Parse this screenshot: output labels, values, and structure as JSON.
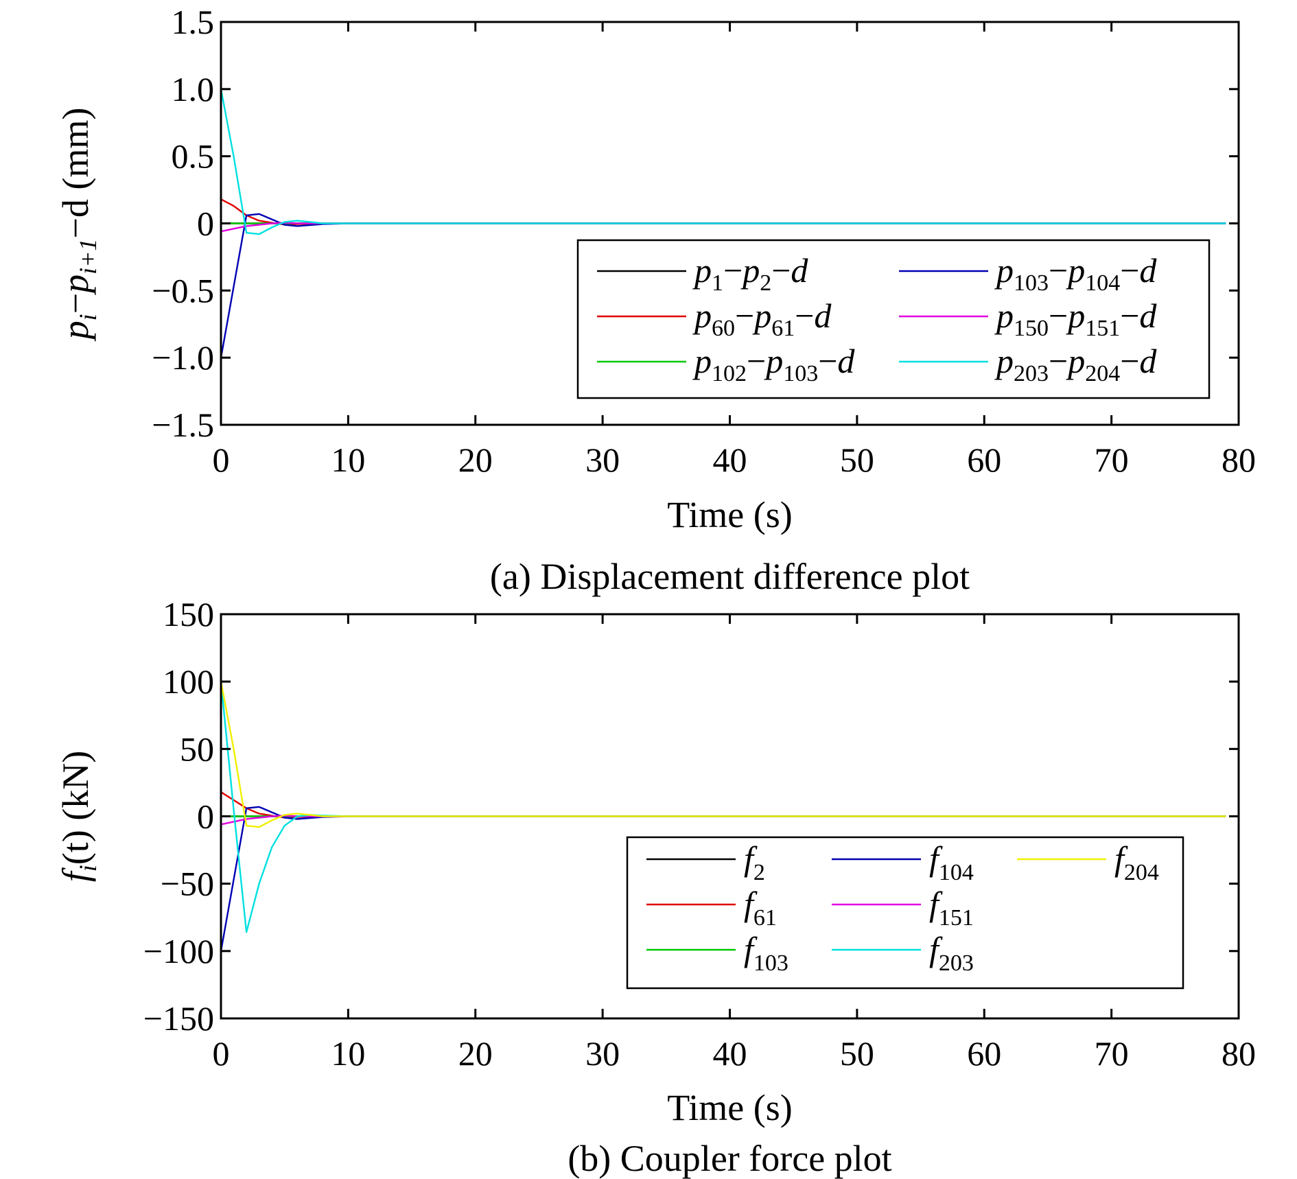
{
  "chart_data": [
    {
      "type": "line",
      "caption": "(a) Displacement difference plot",
      "xlabel": "Time (s)",
      "ylabel": "p_i−p_{i+1}−d (mm)",
      "ylabel_parts": {
        "p1": "p",
        "s1": "i",
        "dash1": "−",
        "p2": "p",
        "s2": "i+1",
        "rest": "−d (mm)"
      },
      "xlim": [
        0,
        80
      ],
      "ylim": [
        -1.5,
        1.5
      ],
      "xticks": [
        "0",
        "10",
        "20",
        "30",
        "40",
        "50",
        "60",
        "70",
        "80"
      ],
      "xtick_values": [
        0,
        10,
        20,
        30,
        40,
        50,
        60,
        70,
        80
      ],
      "yticks": [
        "1.5",
        "1.0",
        "0.5",
        "0",
        "−0.5",
        "−1.0",
        "−1.5"
      ],
      "ytick_values": [
        1.5,
        1.0,
        0.5,
        0,
        -0.5,
        -1.0,
        -1.5
      ],
      "legend_placement": "lower-right",
      "series": [
        {
          "name": "p1−p2−d",
          "label_parts": [
            [
              "p",
              "1"
            ],
            [
              "p",
              "2"
            ]
          ],
          "color": "#000000",
          "x": [
            0,
            2,
            4,
            6,
            8,
            10,
            79
          ],
          "y": [
            0,
            0,
            0,
            0,
            0,
            0,
            0
          ]
        },
        {
          "name": "p60−p61−d",
          "label_parts": [
            [
              "p",
              "60"
            ],
            [
              "p",
              "61"
            ]
          ],
          "color": "#e00000",
          "x": [
            0,
            1,
            2,
            3,
            4,
            5,
            6,
            8,
            10,
            79
          ],
          "y": [
            0.18,
            0.13,
            0.06,
            0.02,
            0.005,
            -0.01,
            -0.005,
            0,
            0,
            0
          ]
        },
        {
          "name": "p102−p103−d",
          "label_parts": [
            [
              "p",
              "102"
            ],
            [
              "p",
              "103"
            ]
          ],
          "color": "#00c800",
          "x": [
            0,
            2,
            4,
            6,
            10,
            79
          ],
          "y": [
            0,
            0,
            0,
            0,
            0,
            0
          ]
        },
        {
          "name": "p103−p104−d",
          "label_parts": [
            [
              "p",
              "103"
            ],
            [
              "p",
              "104"
            ]
          ],
          "color": "#0000b4",
          "x": [
            0,
            2,
            3,
            4,
            5,
            6,
            8,
            10,
            79
          ],
          "y": [
            -1.0,
            0.06,
            0.07,
            0.03,
            -0.01,
            -0.02,
            -0.005,
            0,
            0
          ]
        },
        {
          "name": "p150−p151−d",
          "label_parts": [
            [
              "p",
              "150"
            ],
            [
              "p",
              "151"
            ]
          ],
          "color": "#e000e0",
          "x": [
            0,
            1,
            2,
            3,
            4,
            5,
            6,
            8,
            10,
            79
          ],
          "y": [
            -0.06,
            -0.04,
            -0.02,
            -0.01,
            0,
            0.005,
            0,
            0,
            0,
            0
          ]
        },
        {
          "name": "p203−p204−d",
          "label_parts": [
            [
              "p",
              "203"
            ],
            [
              "p",
              "204"
            ]
          ],
          "color": "#00e0e0",
          "x": [
            0,
            1,
            2,
            3,
            4,
            5,
            6,
            7,
            8,
            10,
            79
          ],
          "y": [
            1.0,
            0.5,
            -0.07,
            -0.08,
            -0.03,
            0.01,
            0.02,
            0.01,
            0,
            0,
            0
          ]
        }
      ]
    },
    {
      "type": "line",
      "caption": "(b) Coupler force plot",
      "xlabel": "Time (s)",
      "ylabel": "f_i(t) (kN)",
      "ylabel_parts": {
        "f": "f",
        "sub": "i",
        "rest": "(t) (kN)"
      },
      "xlim": [
        0,
        80
      ],
      "ylim": [
        -150,
        150
      ],
      "xticks": [
        "0",
        "10",
        "20",
        "30",
        "40",
        "50",
        "60",
        "70",
        "80"
      ],
      "xtick_values": [
        0,
        10,
        20,
        30,
        40,
        50,
        60,
        70,
        80
      ],
      "yticks": [
        "150",
        "100",
        "50",
        "0",
        "−50",
        "−100",
        "−150"
      ],
      "ytick_values": [
        150,
        100,
        50,
        0,
        -50,
        -100,
        -150
      ],
      "legend_placement": "lower-right",
      "series": [
        {
          "name": "f2",
          "label_parts": [
            "f",
            "2"
          ],
          "color": "#000000",
          "x": [
            0,
            2,
            4,
            6,
            10,
            79
          ],
          "y": [
            0,
            0,
            0,
            0,
            0,
            0
          ]
        },
        {
          "name": "f61",
          "label_parts": [
            "f",
            "61"
          ],
          "color": "#e00000",
          "x": [
            0,
            1,
            2,
            3,
            4,
            5,
            6,
            8,
            10,
            79
          ],
          "y": [
            18,
            12,
            6,
            2,
            0.5,
            -1,
            -0.5,
            0,
            0,
            0
          ]
        },
        {
          "name": "f103",
          "label_parts": [
            "f",
            "103"
          ],
          "color": "#00c800",
          "x": [
            0,
            2,
            4,
            6,
            10,
            79
          ],
          "y": [
            0,
            0,
            0,
            0,
            0,
            0
          ]
        },
        {
          "name": "f104",
          "label_parts": [
            "f",
            "104"
          ],
          "color": "#0000b4",
          "x": [
            0,
            2,
            3,
            4,
            5,
            6,
            8,
            10,
            79
          ],
          "y": [
            -100,
            6,
            7,
            3,
            -1,
            -2,
            -0.5,
            0,
            0
          ]
        },
        {
          "name": "f151",
          "label_parts": [
            "f",
            "151"
          ],
          "color": "#e000e0",
          "x": [
            0,
            1,
            2,
            3,
            4,
            5,
            6,
            8,
            10,
            79
          ],
          "y": [
            -6,
            -4,
            -2,
            -1,
            0,
            0.5,
            0,
            0,
            0,
            0
          ]
        },
        {
          "name": "f203",
          "label_parts": [
            "f",
            "203"
          ],
          "color": "#00e0e0",
          "x": [
            0,
            1,
            2,
            3,
            4,
            5,
            6,
            7,
            8,
            10,
            79
          ],
          "y": [
            100,
            5,
            -86,
            -50,
            -23,
            -7,
            0,
            1,
            0.5,
            0,
            0
          ]
        },
        {
          "name": "f204",
          "label_parts": [
            "f",
            "204"
          ],
          "color": "#f0f000",
          "x": [
            0,
            1,
            2,
            3,
            4,
            5,
            6,
            7,
            8,
            10,
            79
          ],
          "y": [
            100,
            50,
            -7,
            -8,
            -3,
            1,
            2,
            1,
            0,
            0,
            0
          ]
        }
      ]
    }
  ]
}
